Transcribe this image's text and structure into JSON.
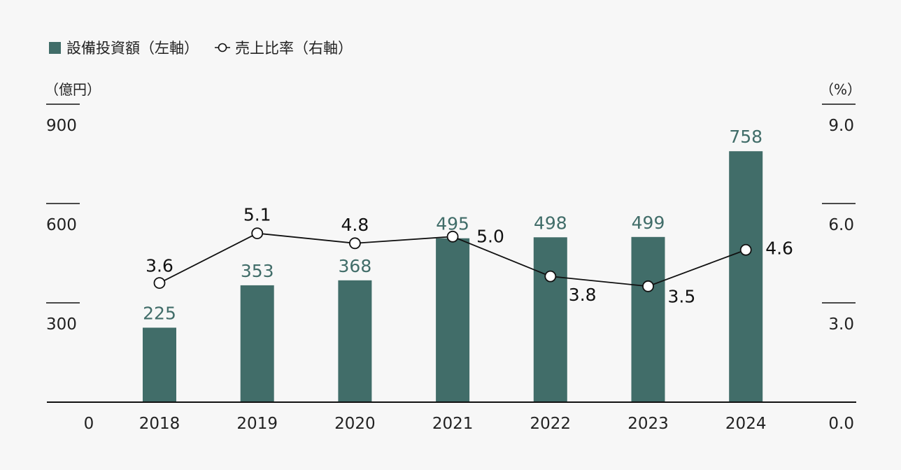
{
  "legend": {
    "bar_label": "設備投資額（左軸）",
    "line_label": "売上比率（右軸）"
  },
  "units": {
    "left": "（億円）",
    "right": "（%）"
  },
  "colors": {
    "bar": "#416d69",
    "bar_label": "#416d69",
    "line": "#111111",
    "marker_fill": "#ffffff",
    "axis": "#111111"
  },
  "chart_data": {
    "type": "bar",
    "categories": [
      "2018",
      "2019",
      "2020",
      "2021",
      "2022",
      "2023",
      "2024"
    ],
    "series": [
      {
        "name": "設備投資額（左軸）",
        "type": "bar",
        "axis": "left",
        "values": [
          225,
          353,
          368,
          495,
          498,
          499,
          758
        ]
      },
      {
        "name": "売上比率（右軸）",
        "type": "line",
        "axis": "right",
        "values": [
          3.6,
          5.1,
          4.8,
          5.0,
          3.8,
          3.5,
          4.6
        ]
      }
    ],
    "line_labels": [
      "3.6",
      "5.1",
      "4.8",
      "5.0",
      "3.8",
      "3.5",
      "4.6"
    ],
    "left_axis": {
      "ticks": [
        "0",
        "300",
        "600",
        "900"
      ],
      "ylim": [
        0,
        900
      ]
    },
    "right_axis": {
      "ticks": [
        "0.0",
        "3.0",
        "6.0",
        "9.0"
      ],
      "ylim": [
        0,
        9
      ]
    },
    "legend_position": "top-left",
    "grid": false
  }
}
